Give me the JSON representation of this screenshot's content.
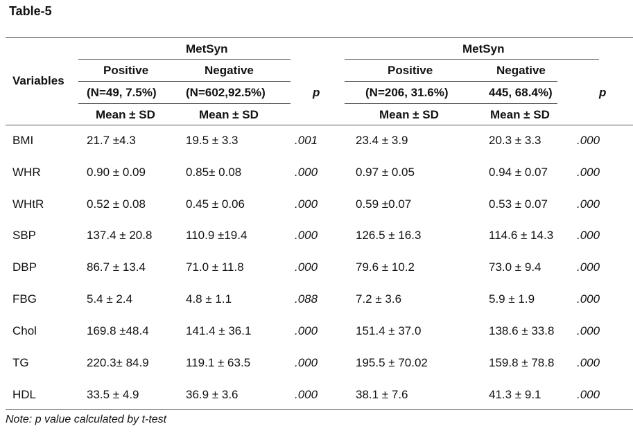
{
  "title": "Table-5",
  "header": {
    "variables_label": "Variables",
    "p_label": "p",
    "groups": [
      {
        "group_label": "MetSyn",
        "positive_label": "Positive",
        "negative_label": "Negative",
        "positive_n": "(N=49, 7.5%)",
        "negative_n": "(N=602,92.5%)",
        "positive_stat": "Mean ± SD",
        "negative_stat": "Mean ± SD"
      },
      {
        "group_label": "MetSyn",
        "positive_label": "Positive",
        "negative_label": "Negative",
        "positive_n": "(N=206, 31.6%)",
        "negative_n": "445, 68.4%)",
        "positive_stat": "Mean ± SD",
        "negative_stat": "Mean ± SD"
      }
    ]
  },
  "rows": [
    {
      "var": "BMI",
      "c1": "21.7 ±4.3",
      "c2": "19.5 ± 3.3",
      "p1": ".001",
      "c3": "23.4 ± 3.9",
      "c4": "20.3 ± 3.3",
      "p2": ".000"
    },
    {
      "var": "WHR",
      "c1": "0.90 ± 0.09",
      "c2": "0.85± 0.08",
      "p1": ".000",
      "c3": "0.97 ± 0.05",
      "c4": "0.94 ± 0.07",
      "p2": ".000"
    },
    {
      "var": "WHtR",
      "c1": "0.52 ± 0.08",
      "c2": "0.45 ± 0.06",
      "p1": ".000",
      "c3": "0.59 ±0.07",
      "c4": "0.53 ± 0.07",
      "p2": ".000"
    },
    {
      "var": "SBP",
      "c1": "137.4 ± 20.8",
      "c2": "110.9 ±19.4",
      "p1": ".000",
      "c3": "126.5 ± 16.3",
      "c4": "114.6 ± 14.3",
      "p2": ".000"
    },
    {
      "var": "DBP",
      "c1": "86.7 ± 13.4",
      "c2": "71.0 ± 11.8",
      "p1": ".000",
      "c3": "79.6 ± 10.2",
      "c4": "73.0 ± 9.4",
      "p2": ".000"
    },
    {
      "var": "FBG",
      "c1": "5.4 ± 2.4",
      "c2": "4.8 ± 1.1",
      "p1": ".088",
      "c3": "7.2 ± 3.6",
      "c4": "5.9 ± 1.9",
      "p2": ".000"
    },
    {
      "var": "Chol",
      "c1": "169.8 ±48.4",
      "c2": "141.4 ± 36.1",
      "p1": ".000",
      "c3": "151.4 ± 37.0",
      "c4": "138.6 ± 33.8",
      "p2": ".000"
    },
    {
      "var": "TG",
      "c1": "220.3± 84.9",
      "c2": "119.1 ± 63.5",
      "p1": ".000",
      "c3": "195.5 ± 70.02",
      "c4": "159.8 ± 78.8",
      "p2": ".000"
    },
    {
      "var": "HDL",
      "c1": "33.5 ± 4.9",
      "c2": "36.9 ± 3.6",
      "p1": ".000",
      "c3": "38.1 ± 7.6",
      "c4": "41.3 ± 9.1",
      "p2": ".000"
    }
  ],
  "note": "Note: p value calculated by t-test"
}
